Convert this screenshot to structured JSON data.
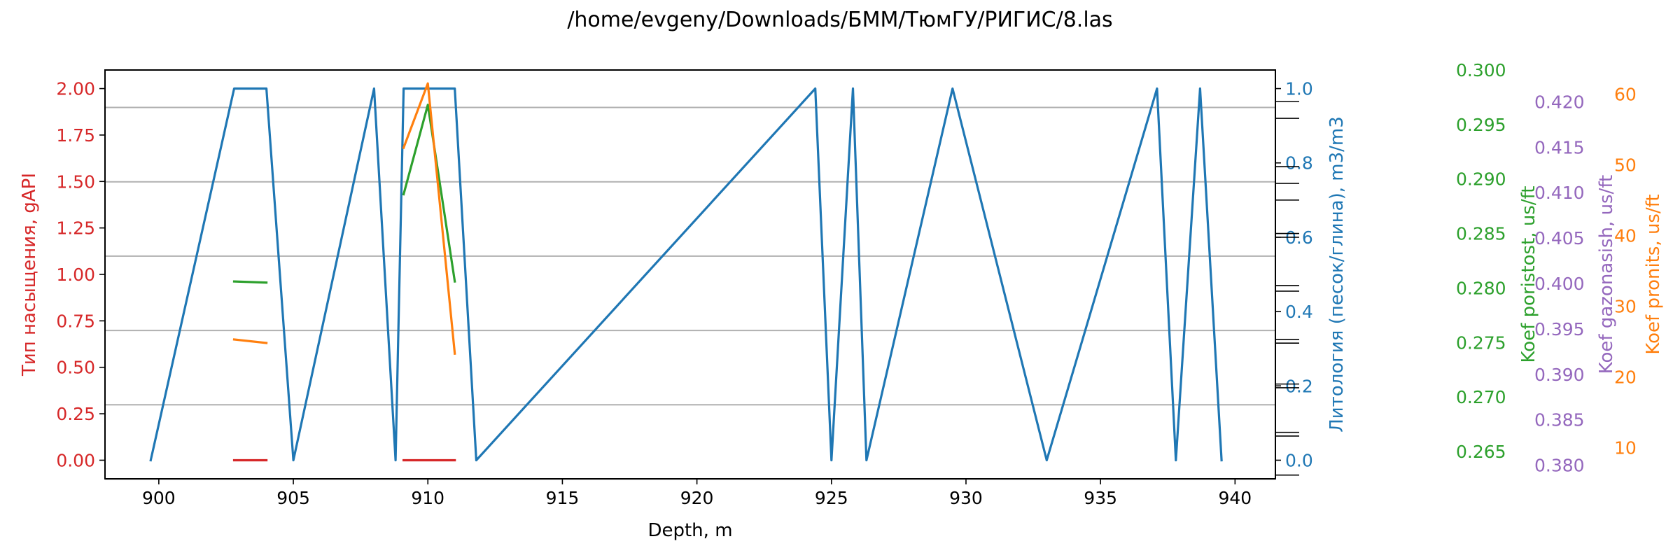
{
  "chart_data": {
    "type": "line",
    "title": "/home/evgeny/Downloads/БММ/ТюмГУ/РИГИС/8.las",
    "xlabel": "Depth, m",
    "xlim": [
      898,
      941.5
    ],
    "x_ticks": [
      900,
      905,
      910,
      915,
      920,
      925,
      930,
      935,
      940
    ],
    "grid": "horizontal lines",
    "axes": {
      "left": {
        "label": "Тип насыщения, gAPI",
        "color": "#d62728",
        "ylim": [
          -0.1,
          2.1
        ],
        "ticks": [
          0.0,
          0.25,
          0.5,
          0.75,
          1.0,
          1.25,
          1.5,
          1.75,
          2.0
        ]
      },
      "right1": {
        "label": "Литология (песок/глина), m3/m3",
        "color": "#1f77b4",
        "ylim": [
          -0.05,
          1.05
        ],
        "ticks": [
          0.0,
          0.2,
          0.4,
          0.6,
          0.8,
          1.0
        ]
      },
      "right2": {
        "label": "Koef poristost, us/ft",
        "color": "#2ca02c",
        "ylim": [
          0.2625,
          0.3
        ],
        "ticks": [
          0.265,
          0.27,
          0.275,
          0.28,
          0.285,
          0.29,
          0.295,
          0.3
        ]
      },
      "right3": {
        "label": "Koef gazonasish, us/ft",
        "color": "#9467bd",
        "ylim": [
          0.3785,
          0.4235
        ],
        "ticks": [
          0.38,
          0.385,
          0.39,
          0.395,
          0.4,
          0.405,
          0.41,
          0.415,
          0.42
        ]
      },
      "right4": {
        "label": "Koef pronits, us/ft",
        "color": "#ff7f0e",
        "ylim": [
          5.6,
          63.4
        ],
        "ticks": [
          10,
          20,
          30,
          40,
          50,
          60
        ]
      }
    },
    "series": [
      {
        "axis": "right1",
        "color": "#1f77b4",
        "x": [
          899.7,
          902.8,
          904,
          905,
          908,
          908.8,
          909.1,
          911,
          911.8,
          924.4,
          925,
          925.8,
          926.3,
          929.5,
          933,
          937.1,
          937.8,
          938.7,
          939.5
        ],
        "y": [
          0,
          1,
          1,
          0,
          1,
          0,
          1,
          1,
          0,
          1,
          0,
          1,
          0,
          1,
          0,
          1,
          0,
          1,
          0
        ],
        "segments": [
          [
            0,
            18
          ]
        ]
      },
      {
        "axis": "left",
        "color": "#d62728",
        "x": [
          902.8,
          904,
          909.1,
          911
        ],
        "y": [
          0,
          0,
          0,
          0
        ],
        "segments": [
          [
            0,
            1
          ],
          [
            2,
            3
          ]
        ]
      },
      {
        "axis": "right2",
        "color": "#2ca02c",
        "x": [
          902.8,
          904,
          909.1,
          910,
          911
        ],
        "y": [
          0.2806,
          0.2805,
          0.2886,
          0.2968,
          0.2806
        ],
        "segments": [
          [
            0,
            1
          ],
          [
            2,
            4
          ]
        ]
      },
      {
        "axis": "right4",
        "color": "#ff7f0e",
        "x": [
          902.8,
          904,
          909.1,
          910,
          911
        ],
        "y": [
          25.3,
          24.8,
          52.4,
          61.5,
          23.3
        ],
        "segments": [
          [
            0,
            1
          ],
          [
            2,
            4
          ]
        ]
      }
    ]
  }
}
